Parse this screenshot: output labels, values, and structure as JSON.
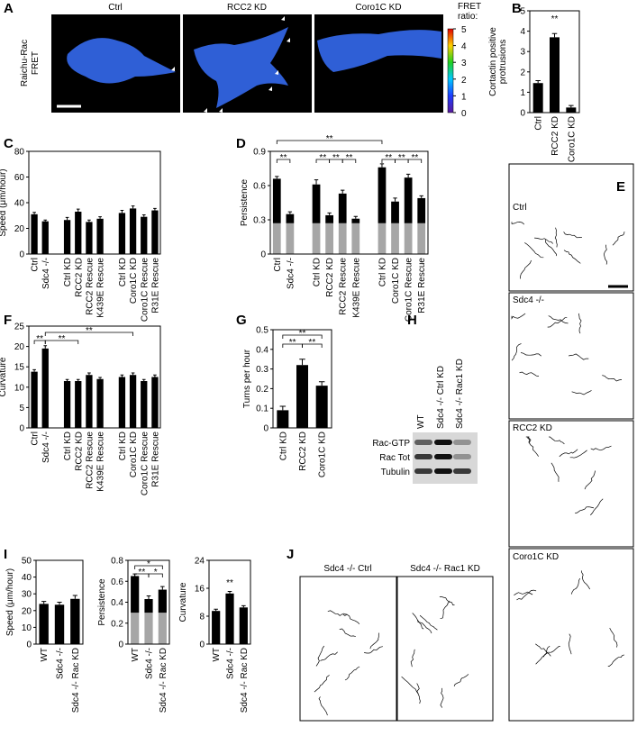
{
  "panel_labels": [
    "A",
    "B",
    "C",
    "D",
    "E",
    "F",
    "G",
    "H",
    "I",
    "J"
  ],
  "panel_a": {
    "ylabel": [
      "Raichu-Rac",
      "FRET"
    ],
    "labels": [
      "Ctrl",
      "RCC2 KD",
      "Coro1C KD"
    ],
    "colorbar": {
      "title": [
        "FRET",
        "ratio:"
      ],
      "lim": [
        0,
        5
      ],
      "ticks": [
        0,
        1,
        2,
        3,
        4,
        5
      ]
    }
  },
  "panel_e": {
    "labels": [
      "Ctrl",
      "Sdc4 -/-",
      "RCC2 KD",
      "Coro1C KD"
    ]
  },
  "panel_h": {
    "columns": [
      "WT",
      "Sdc4 -/- Ctrl KD",
      "Sdc4 -/- Rac1 KD"
    ],
    "rows": [
      "Rac-GTP",
      "Rac Tot",
      "Tubulin"
    ]
  },
  "panel_j": {
    "labels": [
      "Sdc4 -/- Ctrl",
      "Sdc4 -/- Rac1 KD"
    ]
  },
  "chart_data": [
    {
      "type": "bar",
      "ylabel": [
        "Cortactin positive",
        "protrusions"
      ],
      "categories": [
        "Ctrl",
        "RCC2 KD",
        "Coro1C KD"
      ],
      "series": [
        {
          "color": "#000000",
          "values": [
            1.45,
            3.7,
            0.25
          ],
          "errors": [
            0.12,
            0.18,
            0.1
          ]
        }
      ],
      "ylim": [
        0,
        5
      ],
      "yticks": [
        0,
        1,
        2,
        3,
        4,
        5
      ],
      "annotations": [
        "**"
      ]
    },
    {
      "type": "bar",
      "ylabel": "Speed (μm/hour)",
      "categories": [
        "Ctrl",
        "Sdc4 -/-",
        null,
        "Ctrl KD",
        "RCC2 KD",
        "RCC2 Rescue",
        "K439E Rescue",
        null,
        "Ctrl KD",
        "Coro1C KD",
        "Coro1C Rescue",
        "R31E Rescue"
      ],
      "series": [
        {
          "color": "#000000",
          "values": [
            31,
            25.5,
            null,
            26.5,
            33,
            25,
            27.5,
            null,
            32,
            35.5,
            29,
            34
          ],
          "errors": [
            1.5,
            1,
            null,
            2,
            2,
            1.5,
            1.5,
            null,
            2,
            2,
            1.5,
            1.5
          ]
        }
      ],
      "ylim": [
        0,
        80
      ],
      "yticks": [
        0,
        20,
        40,
        60,
        80
      ]
    },
    {
      "type": "stacked_bar",
      "ylabel": "Persistence",
      "categories": [
        "Ctrl",
        "Sdc4 -/-",
        null,
        "Ctrl KD",
        "RCC2 KD",
        "RCC2 Rescue",
        "K439E Rescue",
        null,
        "Ctrl KD",
        "Coro1C KD",
        "Coro1C Rescue",
        "R31E Rescue"
      ],
      "series": [
        {
          "color": "#a6a6a6",
          "values": [
            0.27,
            0.27,
            null,
            0.27,
            0.27,
            0.27,
            0.27,
            null,
            0.27,
            0.27,
            0.27,
            0.27
          ]
        },
        {
          "color": "#000000",
          "values": [
            0.39,
            0.08,
            null,
            0.34,
            0.07,
            0.26,
            0.04,
            null,
            0.49,
            0.19,
            0.4,
            0.22
          ],
          "errors": [
            0.02,
            0.02,
            null,
            0.04,
            0.02,
            0.03,
            0.02,
            null,
            0.03,
            0.03,
            0.03,
            0.02
          ]
        }
      ],
      "ylim": [
        0,
        0.9
      ],
      "yticks": [
        0,
        0.3,
        0.6,
        0.9
      ],
      "annotations": [
        "**",
        "**",
        "**",
        "**",
        "**",
        "**",
        "**",
        "**"
      ]
    },
    {
      "type": "bar",
      "ylabel": "Curvature",
      "categories": [
        "Ctrl",
        "Sdc4 -/-",
        null,
        "Ctrl KD",
        "RCC2 KD",
        "RCC2 Rescue",
        "K439E Rescue",
        null,
        "Ctrl KD",
        "Coro1C KD",
        "Coro1C Rescue",
        "R31E Rescue"
      ],
      "series": [
        {
          "color": "#000000",
          "values": [
            13.8,
            19.5,
            null,
            11.5,
            11.5,
            13,
            12,
            null,
            12.5,
            13,
            11.5,
            12.5
          ],
          "errors": [
            0.5,
            0.7,
            null,
            0.4,
            0.4,
            0.5,
            0.4,
            null,
            0.5,
            0.5,
            0.4,
            0.5
          ]
        }
      ],
      "ylim": [
        0,
        25
      ],
      "yticks": [
        0,
        5,
        10,
        15,
        20,
        25
      ],
      "annotations": [
        "**",
        "**",
        "**"
      ]
    },
    {
      "type": "bar",
      "ylabel": "Turns per hour",
      "categories": [
        "Ctrl KD",
        "RCC2 KD",
        "Coro1C KD"
      ],
      "series": [
        {
          "color": "#000000",
          "values": [
            0.09,
            0.32,
            0.215
          ],
          "errors": [
            0.02,
            0.03,
            0.02
          ]
        }
      ],
      "ylim": [
        0,
        0.5
      ],
      "yticks": [
        0,
        0.1,
        0.2,
        0.3,
        0.4,
        0.5
      ],
      "annotations": [
        "**",
        "**",
        "**"
      ]
    },
    {
      "type": "bar",
      "ylabel": "Speed (μm/hour)",
      "categories": [
        "WT",
        "Sdc4 -/-",
        "Sdc4 -/- Rac KD"
      ],
      "series": [
        {
          "color": "#000000",
          "values": [
            24,
            23.5,
            27
          ],
          "errors": [
            1.5,
            1.5,
            2
          ]
        }
      ],
      "ylim": [
        0,
        50
      ],
      "yticks": [
        0,
        10,
        20,
        30,
        40,
        50
      ]
    },
    {
      "type": "stacked_bar",
      "ylabel": "Persistence",
      "categories": [
        "WT",
        "Sdc4 -/-",
        "Sdc4 -/- Rac KD"
      ],
      "series": [
        {
          "color": "#a6a6a6",
          "values": [
            0.3,
            0.3,
            0.3
          ]
        },
        {
          "color": "#000000",
          "values": [
            0.35,
            0.13,
            0.22
          ],
          "errors": [
            0.02,
            0.03,
            0.03
          ]
        }
      ],
      "ylim": [
        0,
        0.8
      ],
      "yticks": [
        0,
        0.2,
        0.4,
        0.6,
        0.8
      ],
      "annotations": [
        "*",
        "**",
        "*"
      ]
    },
    {
      "type": "bar",
      "ylabel": "Curvature",
      "categories": [
        "WT",
        "Sdc4 -/-",
        "Sdc4 -/- Rac KD"
      ],
      "series": [
        {
          "color": "#000000",
          "values": [
            9.5,
            14.5,
            10.5
          ],
          "errors": [
            0.5,
            0.6,
            0.5
          ]
        }
      ],
      "ylim": [
        0,
        24
      ],
      "yticks": [
        0,
        8,
        16,
        24
      ],
      "annotations": [
        "**"
      ]
    }
  ]
}
